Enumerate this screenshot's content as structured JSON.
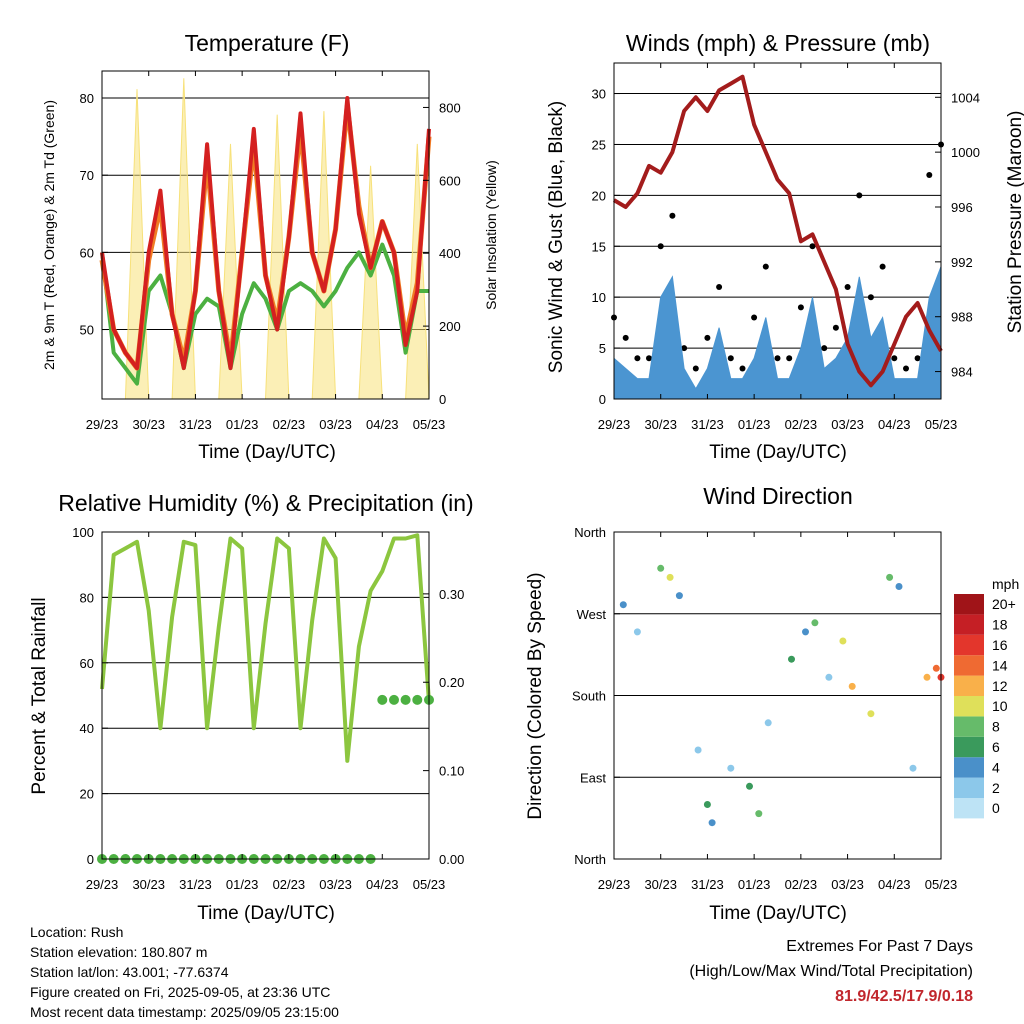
{
  "x_ticks": [
    "29/23",
    "30/23",
    "31/23",
    "01/23",
    "02/23",
    "03/23",
    "04/23",
    "05/23"
  ],
  "panels": {
    "temperature": {
      "title": "Temperature (F)",
      "ylabel": "2m & 9m T (Red, Orange) & 2m Td (Green)",
      "y2label": "Solar Insolation (Yellow)",
      "xlabel": "Time (Day/UTC)",
      "yticks": [
        "50",
        "60",
        "70",
        "80"
      ],
      "y2ticks": [
        "0",
        "200",
        "400",
        "600",
        "800"
      ]
    },
    "winds": {
      "title": "Winds (mph) & Pressure (mb)",
      "ylabel": "Sonic Wind & Gust (Blue, Black)",
      "y2label": "Station Pressure (Maroon)",
      "xlabel": "Time (Day/UTC)",
      "yticks": [
        "0",
        "5",
        "10",
        "15",
        "20",
        "25",
        "30"
      ],
      "y2ticks": [
        "984",
        "988",
        "992",
        "996",
        "1000",
        "1004"
      ]
    },
    "humidity": {
      "title": "Relative Humidity (%) & Precipitation (in)",
      "ylabel": "Percent & Total Rainfall",
      "xlabel": "Time (Day/UTC)",
      "yticks": [
        "0",
        "20",
        "40",
        "60",
        "80",
        "100"
      ],
      "y2ticks": [
        "0.00",
        "0.10",
        "0.20",
        "0.30"
      ]
    },
    "direction": {
      "title": "Wind Direction",
      "ylabel": "Direction (Colored By Speed)",
      "xlabel": "Time (Day/UTC)",
      "yticks": [
        "North",
        "East",
        "South",
        "West",
        "North"
      ],
      "colorbar_title": "mph",
      "colorbar_labels": [
        "0",
        "2",
        "4",
        "6",
        "8",
        "10",
        "12",
        "14",
        "16",
        "18",
        "20+"
      ],
      "colorbar_colors": [
        "#bde3f5",
        "#8cc8ea",
        "#4a90c9",
        "#3a9a5c",
        "#66bb6a",
        "#dfe05a",
        "#f9b04a",
        "#ef6a32",
        "#e3362c",
        "#c51f25",
        "#a01418"
      ]
    }
  },
  "info": {
    "location": "Location: Rush",
    "elevation": "Station elevation: 180.807 m",
    "latlon": "Station lat/lon: 43.001; -77.6374",
    "created": "Figure created on Fri, 2025-09-05, at 23:36 UTC",
    "recent": "Most recent data timestamp: 2025/09/05 23:15:00"
  },
  "extremes": {
    "line1": "Extremes For Past 7 Days",
    "line2": "(High/Low/Max Wind/Total Precipitation)",
    "values": "81.9/42.5/17.9/0.18"
  },
  "colors": {
    "temp2m": "#d42020",
    "temp9m": "#f07c24",
    "dewpoint": "#4cb041",
    "solar": "#f7e17a",
    "wind": "#4b95d1",
    "gust": "#000000",
    "pressure": "#a31c1c",
    "rh": "#8cc63f",
    "precip": "#4cb041"
  },
  "chart_data": [
    {
      "type": "line",
      "title": "Temperature (F)",
      "xlabel": "Time (Day/UTC)",
      "ylabel": "2m & 9m T (Red, Orange) & 2m Td (Green)",
      "y2label": "Solar Insolation (Yellow)",
      "x": [
        0,
        0.25,
        0.5,
        0.75,
        1,
        1.25,
        1.5,
        1.75,
        2,
        2.25,
        2.5,
        2.75,
        3,
        3.25,
        3.5,
        3.75,
        4,
        4.25,
        4.5,
        4.75,
        5,
        5.25,
        5.5,
        5.75,
        6,
        6.25,
        6.5,
        6.75,
        7
      ],
      "xticks": [
        "29/23",
        "30/23",
        "31/23",
        "01/23",
        "02/23",
        "03/23",
        "04/23",
        "05/23"
      ],
      "ylim": [
        41,
        83.5
      ],
      "y2lim": [
        0,
        900
      ],
      "series": [
        {
          "values": [
            60,
            50,
            47,
            45,
            60,
            68,
            52,
            45,
            55,
            74,
            55,
            45,
            60,
            76,
            57,
            50,
            62,
            78,
            60,
            55,
            63,
            80,
            65,
            58,
            64,
            60,
            48,
            55,
            76
          ]
        },
        {
          "values": [
            59,
            50,
            47,
            45,
            59,
            66,
            52,
            46,
            55,
            72,
            55,
            46,
            60,
            74,
            57,
            51,
            62,
            76,
            60,
            55,
            63,
            79,
            66,
            58,
            64,
            60,
            49,
            56,
            75
          ]
        },
        {
          "values": [
            60,
            47,
            45,
            43,
            55,
            57,
            52,
            45,
            52,
            54,
            53,
            45,
            52,
            56,
            54,
            50,
            55,
            56,
            55,
            53,
            55,
            58,
            60,
            57,
            61,
            57,
            47,
            55,
            55
          ]
        },
        {
          "values": [
            0,
            0,
            0,
            850,
            0,
            0,
            0,
            880,
            0,
            0,
            0,
            700,
            0,
            0,
            0,
            780,
            0,
            0,
            0,
            790,
            0,
            0,
            0,
            640,
            0,
            0,
            0,
            700,
            0
          ]
        }
      ]
    },
    {
      "type": "line",
      "title": "Winds (mph) & Pressure (mb)",
      "xlabel": "Time (Day/UTC)",
      "ylabel": "Sonic Wind & Gust (Blue, Black)",
      "y2label": "Station Pressure (Maroon)",
      "x": [
        0,
        0.25,
        0.5,
        0.75,
        1,
        1.25,
        1.5,
        1.75,
        2,
        2.25,
        2.5,
        2.75,
        3,
        3.25,
        3.5,
        3.75,
        4,
        4.25,
        4.5,
        4.75,
        5,
        5.25,
        5.5,
        5.75,
        6,
        6.25,
        6.5,
        6.75,
        7
      ],
      "xticks": [
        "29/23",
        "30/23",
        "31/23",
        "01/23",
        "02/23",
        "03/23",
        "04/23",
        "05/23"
      ],
      "ylim": [
        0,
        33
      ],
      "y2lim": [
        982,
        1006.5
      ],
      "series": [
        {
          "values": [
            4,
            3,
            2,
            2,
            10,
            12,
            3,
            1,
            3,
            7,
            2,
            2,
            4,
            8,
            2,
            2,
            5,
            10,
            3,
            4,
            6,
            12,
            6,
            8,
            2,
            2,
            2,
            10,
            13
          ]
        },
        {
          "values": [
            8,
            6,
            4,
            4,
            15,
            18,
            5,
            3,
            6,
            11,
            4,
            3,
            8,
            13,
            4,
            4,
            9,
            15,
            5,
            7,
            11,
            20,
            10,
            13,
            4,
            3,
            4,
            22,
            25
          ]
        },
        {
          "values": [
            996.5,
            996,
            997,
            999,
            998.5,
            1000,
            1003,
            1004,
            1003,
            1004.5,
            1005,
            1005.5,
            1002,
            1000,
            998,
            997,
            993.5,
            994,
            992,
            990,
            986,
            984,
            983,
            984,
            986,
            988,
            989,
            987,
            985.5
          ]
        }
      ]
    },
    {
      "type": "line",
      "title": "Relative Humidity (%) & Precipitation (in)",
      "xlabel": "Time (Day/UTC)",
      "ylabel": "Percent & Total Rainfall",
      "x": [
        0,
        0.25,
        0.5,
        0.75,
        1,
        1.25,
        1.5,
        1.75,
        2,
        2.25,
        2.5,
        2.75,
        3,
        3.25,
        3.5,
        3.75,
        4,
        4.25,
        4.5,
        4.75,
        5,
        5.25,
        5.5,
        5.75,
        6,
        6.25,
        6.5,
        6.75,
        7
      ],
      "xticks": [
        "29/23",
        "30/23",
        "31/23",
        "01/23",
        "02/23",
        "03/23",
        "04/23",
        "05/23"
      ],
      "ylim": [
        0,
        100
      ],
      "y2lim": [
        0,
        0.37
      ],
      "series": [
        {
          "values": [
            52,
            93,
            95,
            97,
            76,
            40,
            74,
            97,
            96,
            40,
            71,
            98,
            95,
            40,
            72,
            98,
            95,
            40,
            73,
            98,
            92,
            30,
            65,
            82,
            88,
            98,
            98,
            99,
            48
          ]
        },
        {
          "values": [
            0,
            0,
            0,
            0,
            0,
            0,
            0,
            0,
            0,
            0,
            0,
            0,
            0,
            0,
            0,
            0,
            0,
            0,
            0,
            0,
            0,
            0,
            0,
            0,
            0.18,
            0.18,
            0.18,
            0.18,
            0.18
          ]
        }
      ]
    },
    {
      "type": "scatter",
      "title": "Wind Direction",
      "xlabel": "Time (Day/UTC)",
      "ylabel": "Direction (Colored By Speed)",
      "xticks": [
        "29/23",
        "30/23",
        "31/23",
        "01/23",
        "02/23",
        "03/23",
        "04/23",
        "05/23"
      ],
      "yticks": [
        "North",
        "East",
        "South",
        "West",
        "North"
      ],
      "ylim": [
        0,
        360
      ],
      "colorbar": {
        "title": "mph",
        "range": [
          0,
          20
        ]
      },
      "points": [
        [
          0.2,
          280,
          4
        ],
        [
          0.5,
          250,
          2
        ],
        [
          1.0,
          320,
          8
        ],
        [
          1.2,
          310,
          10
        ],
        [
          1.4,
          290,
          5
        ],
        [
          1.8,
          120,
          3
        ],
        [
          2.0,
          60,
          6
        ],
        [
          2.1,
          40,
          5
        ],
        [
          2.5,
          100,
          2
        ],
        [
          2.9,
          80,
          6
        ],
        [
          3.1,
          50,
          8
        ],
        [
          3.3,
          150,
          3
        ],
        [
          3.8,
          220,
          6
        ],
        [
          4.1,
          250,
          4
        ],
        [
          4.3,
          260,
          9
        ],
        [
          4.6,
          200,
          3
        ],
        [
          4.9,
          240,
          10
        ],
        [
          5.1,
          190,
          13
        ],
        [
          5.5,
          160,
          11
        ],
        [
          5.9,
          310,
          9
        ],
        [
          6.1,
          300,
          5
        ],
        [
          6.4,
          100,
          2
        ],
        [
          6.7,
          200,
          12
        ],
        [
          6.9,
          210,
          15
        ],
        [
          7.0,
          200,
          16
        ]
      ]
    }
  ]
}
